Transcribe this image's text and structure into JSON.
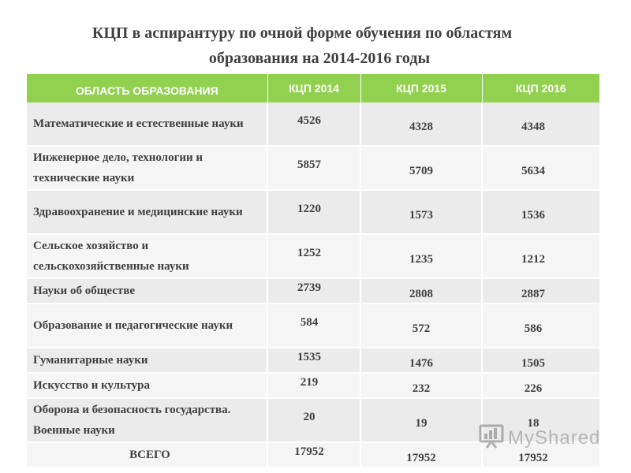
{
  "title": {
    "line1": "КЦП в аспирантуру по очной форме обучения по областям",
    "line2": "образования  на 2014-2016 годы"
  },
  "table": {
    "headers": [
      "ОБЛАСТЬ ОБРАЗОВАНИЯ",
      "КЦП 2014",
      "КЦП 2015",
      "КЦП 2016"
    ],
    "rows": [
      {
        "area": "Математические и естественные науки",
        "kcp2014": "4526",
        "kcp2015": "4328",
        "kcp2016": "4348"
      },
      {
        "area": "Инженерное дело, технологии и технические науки",
        "kcp2014": "5857",
        "kcp2015": "5709",
        "kcp2016": "5634"
      },
      {
        "area": "Здравоохранение и медицинские науки",
        "kcp2014": "1220",
        "kcp2015": "1573",
        "kcp2016": "1536"
      },
      {
        "area": "Сельское хозяйство и сельскохозяйственные науки",
        "kcp2014": "1252",
        "kcp2015": "1235",
        "kcp2016": "1212"
      },
      {
        "area": "Науки об обществе",
        "kcp2014": "2739",
        "kcp2015": "2808",
        "kcp2016": "2887"
      },
      {
        "area": "Образование и педагогические науки",
        "kcp2014": "584",
        "kcp2015": "572",
        "kcp2016": "586"
      },
      {
        "area": "Гуманитарные науки",
        "kcp2014": "1535",
        "kcp2015": "1476",
        "kcp2016": "1505"
      },
      {
        "area": "Искусство и культура",
        "kcp2014": "219",
        "kcp2015": "232",
        "kcp2016": "226"
      },
      {
        "area": "Оборона и безопасность государства. Военные науки",
        "kcp2014": "20",
        "kcp2015": "19",
        "kcp2016": "18"
      }
    ],
    "total": {
      "area": "ВСЕГО",
      "kcp2014": "17952",
      "kcp2015": "17952",
      "kcp2016": "17952"
    }
  },
  "watermark": {
    "text": "MyShared",
    "icon": "presentation-board-icon"
  },
  "colors": {
    "header_bg": "#92d050",
    "row_odd": "#ebebeb",
    "row_even": "#f5f5f5",
    "text": "#404040"
  }
}
